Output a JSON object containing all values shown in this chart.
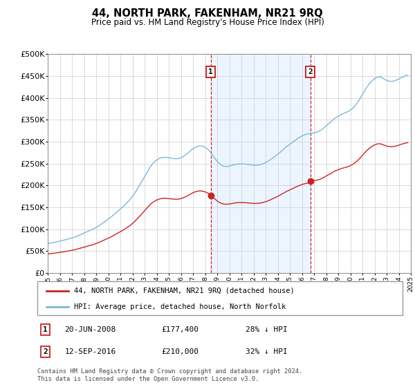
{
  "title": "44, NORTH PARK, FAKENHAM, NR21 9RQ",
  "subtitle": "Price paid vs. HM Land Registry's House Price Index (HPI)",
  "legend_line1": "44, NORTH PARK, FAKENHAM, NR21 9RQ (detached house)",
  "legend_line2": "HPI: Average price, detached house, North Norfolk",
  "footnote": "Contains HM Land Registry data © Crown copyright and database right 2024.\nThis data is licensed under the Open Government Licence v3.0.",
  "annotation1_label": "1",
  "annotation1_date": "20-JUN-2008",
  "annotation1_price": "£177,400",
  "annotation1_hpi": "28% ↓ HPI",
  "annotation1_year": 2008.47,
  "annotation1_value": 177400,
  "annotation2_label": "2",
  "annotation2_date": "12-SEP-2016",
  "annotation2_price": "£210,000",
  "annotation2_hpi": "32% ↓ HPI",
  "annotation2_year": 2016.71,
  "annotation2_value": 210000,
  "hpi_color": "#7ab8d9",
  "sold_color": "#cc2222",
  "bg_color": "#ddeeff",
  "ylim": [
    0,
    500000
  ],
  "yticks": [
    0,
    50000,
    100000,
    150000,
    200000,
    250000,
    300000,
    350000,
    400000,
    450000,
    500000
  ],
  "ytick_labels": [
    "£0",
    "£50K",
    "£100K",
    "£150K",
    "£200K",
    "£250K",
    "£300K",
    "£350K",
    "£400K",
    "£450K",
    "£500K"
  ],
  "hpi_years": [
    1995,
    1995.25,
    1995.5,
    1995.75,
    1996,
    1996.25,
    1996.5,
    1996.75,
    1997,
    1997.25,
    1997.5,
    1997.75,
    1998,
    1998.25,
    1998.5,
    1998.75,
    1999,
    1999.25,
    1999.5,
    1999.75,
    2000,
    2000.25,
    2000.5,
    2000.75,
    2001,
    2001.25,
    2001.5,
    2001.75,
    2002,
    2002.25,
    2002.5,
    2002.75,
    2003,
    2003.25,
    2003.5,
    2003.75,
    2004,
    2004.25,
    2004.5,
    2004.75,
    2005,
    2005.25,
    2005.5,
    2005.75,
    2006,
    2006.25,
    2006.5,
    2006.75,
    2007,
    2007.25,
    2007.5,
    2007.75,
    2008,
    2008.25,
    2008.5,
    2008.75,
    2009,
    2009.25,
    2009.5,
    2009.75,
    2010,
    2010.25,
    2010.5,
    2010.75,
    2011,
    2011.25,
    2011.5,
    2011.75,
    2012,
    2012.25,
    2012.5,
    2012.75,
    2013,
    2013.25,
    2013.5,
    2013.75,
    2014,
    2014.25,
    2014.5,
    2014.75,
    2015,
    2015.25,
    2015.5,
    2015.75,
    2016,
    2016.25,
    2016.5,
    2016.75,
    2017,
    2017.25,
    2017.5,
    2017.75,
    2018,
    2018.25,
    2018.5,
    2018.75,
    2019,
    2019.25,
    2019.5,
    2019.75,
    2020,
    2020.25,
    2020.5,
    2020.75,
    2021,
    2021.25,
    2021.5,
    2021.75,
    2022,
    2022.25,
    2022.5,
    2022.75,
    2023,
    2023.25,
    2023.5,
    2023.75,
    2024,
    2024.25,
    2024.5,
    2024.75
  ],
  "hpi_values": [
    67000,
    68000,
    69500,
    71000,
    72500,
    74000,
    76000,
    78000,
    80000,
    82000,
    85000,
    88000,
    91000,
    94000,
    97000,
    100000,
    104000,
    108000,
    113000,
    118000,
    123000,
    128000,
    134000,
    140000,
    146000,
    152000,
    159000,
    166000,
    175000,
    185000,
    196000,
    208000,
    220000,
    232000,
    244000,
    252000,
    258000,
    262000,
    264000,
    264000,
    263000,
    262000,
    261000,
    261000,
    263000,
    267000,
    272000,
    278000,
    284000,
    288000,
    290000,
    290000,
    287000,
    282000,
    274000,
    264000,
    255000,
    248000,
    244000,
    243000,
    244000,
    246000,
    248000,
    249000,
    249000,
    249000,
    248000,
    247000,
    246000,
    246000,
    247000,
    249000,
    252000,
    256000,
    261000,
    266000,
    271000,
    277000,
    283000,
    289000,
    294000,
    299000,
    304000,
    309000,
    313000,
    316000,
    318000,
    319000,
    320000,
    322000,
    325000,
    330000,
    336000,
    342000,
    348000,
    354000,
    358000,
    362000,
    365000,
    368000,
    372000,
    378000,
    386000,
    396000,
    408000,
    420000,
    430000,
    438000,
    444000,
    448000,
    448000,
    444000,
    440000,
    438000,
    438000,
    440000,
    443000,
    447000,
    450000,
    452000
  ],
  "xmin": 1995,
  "xmax": 2025
}
